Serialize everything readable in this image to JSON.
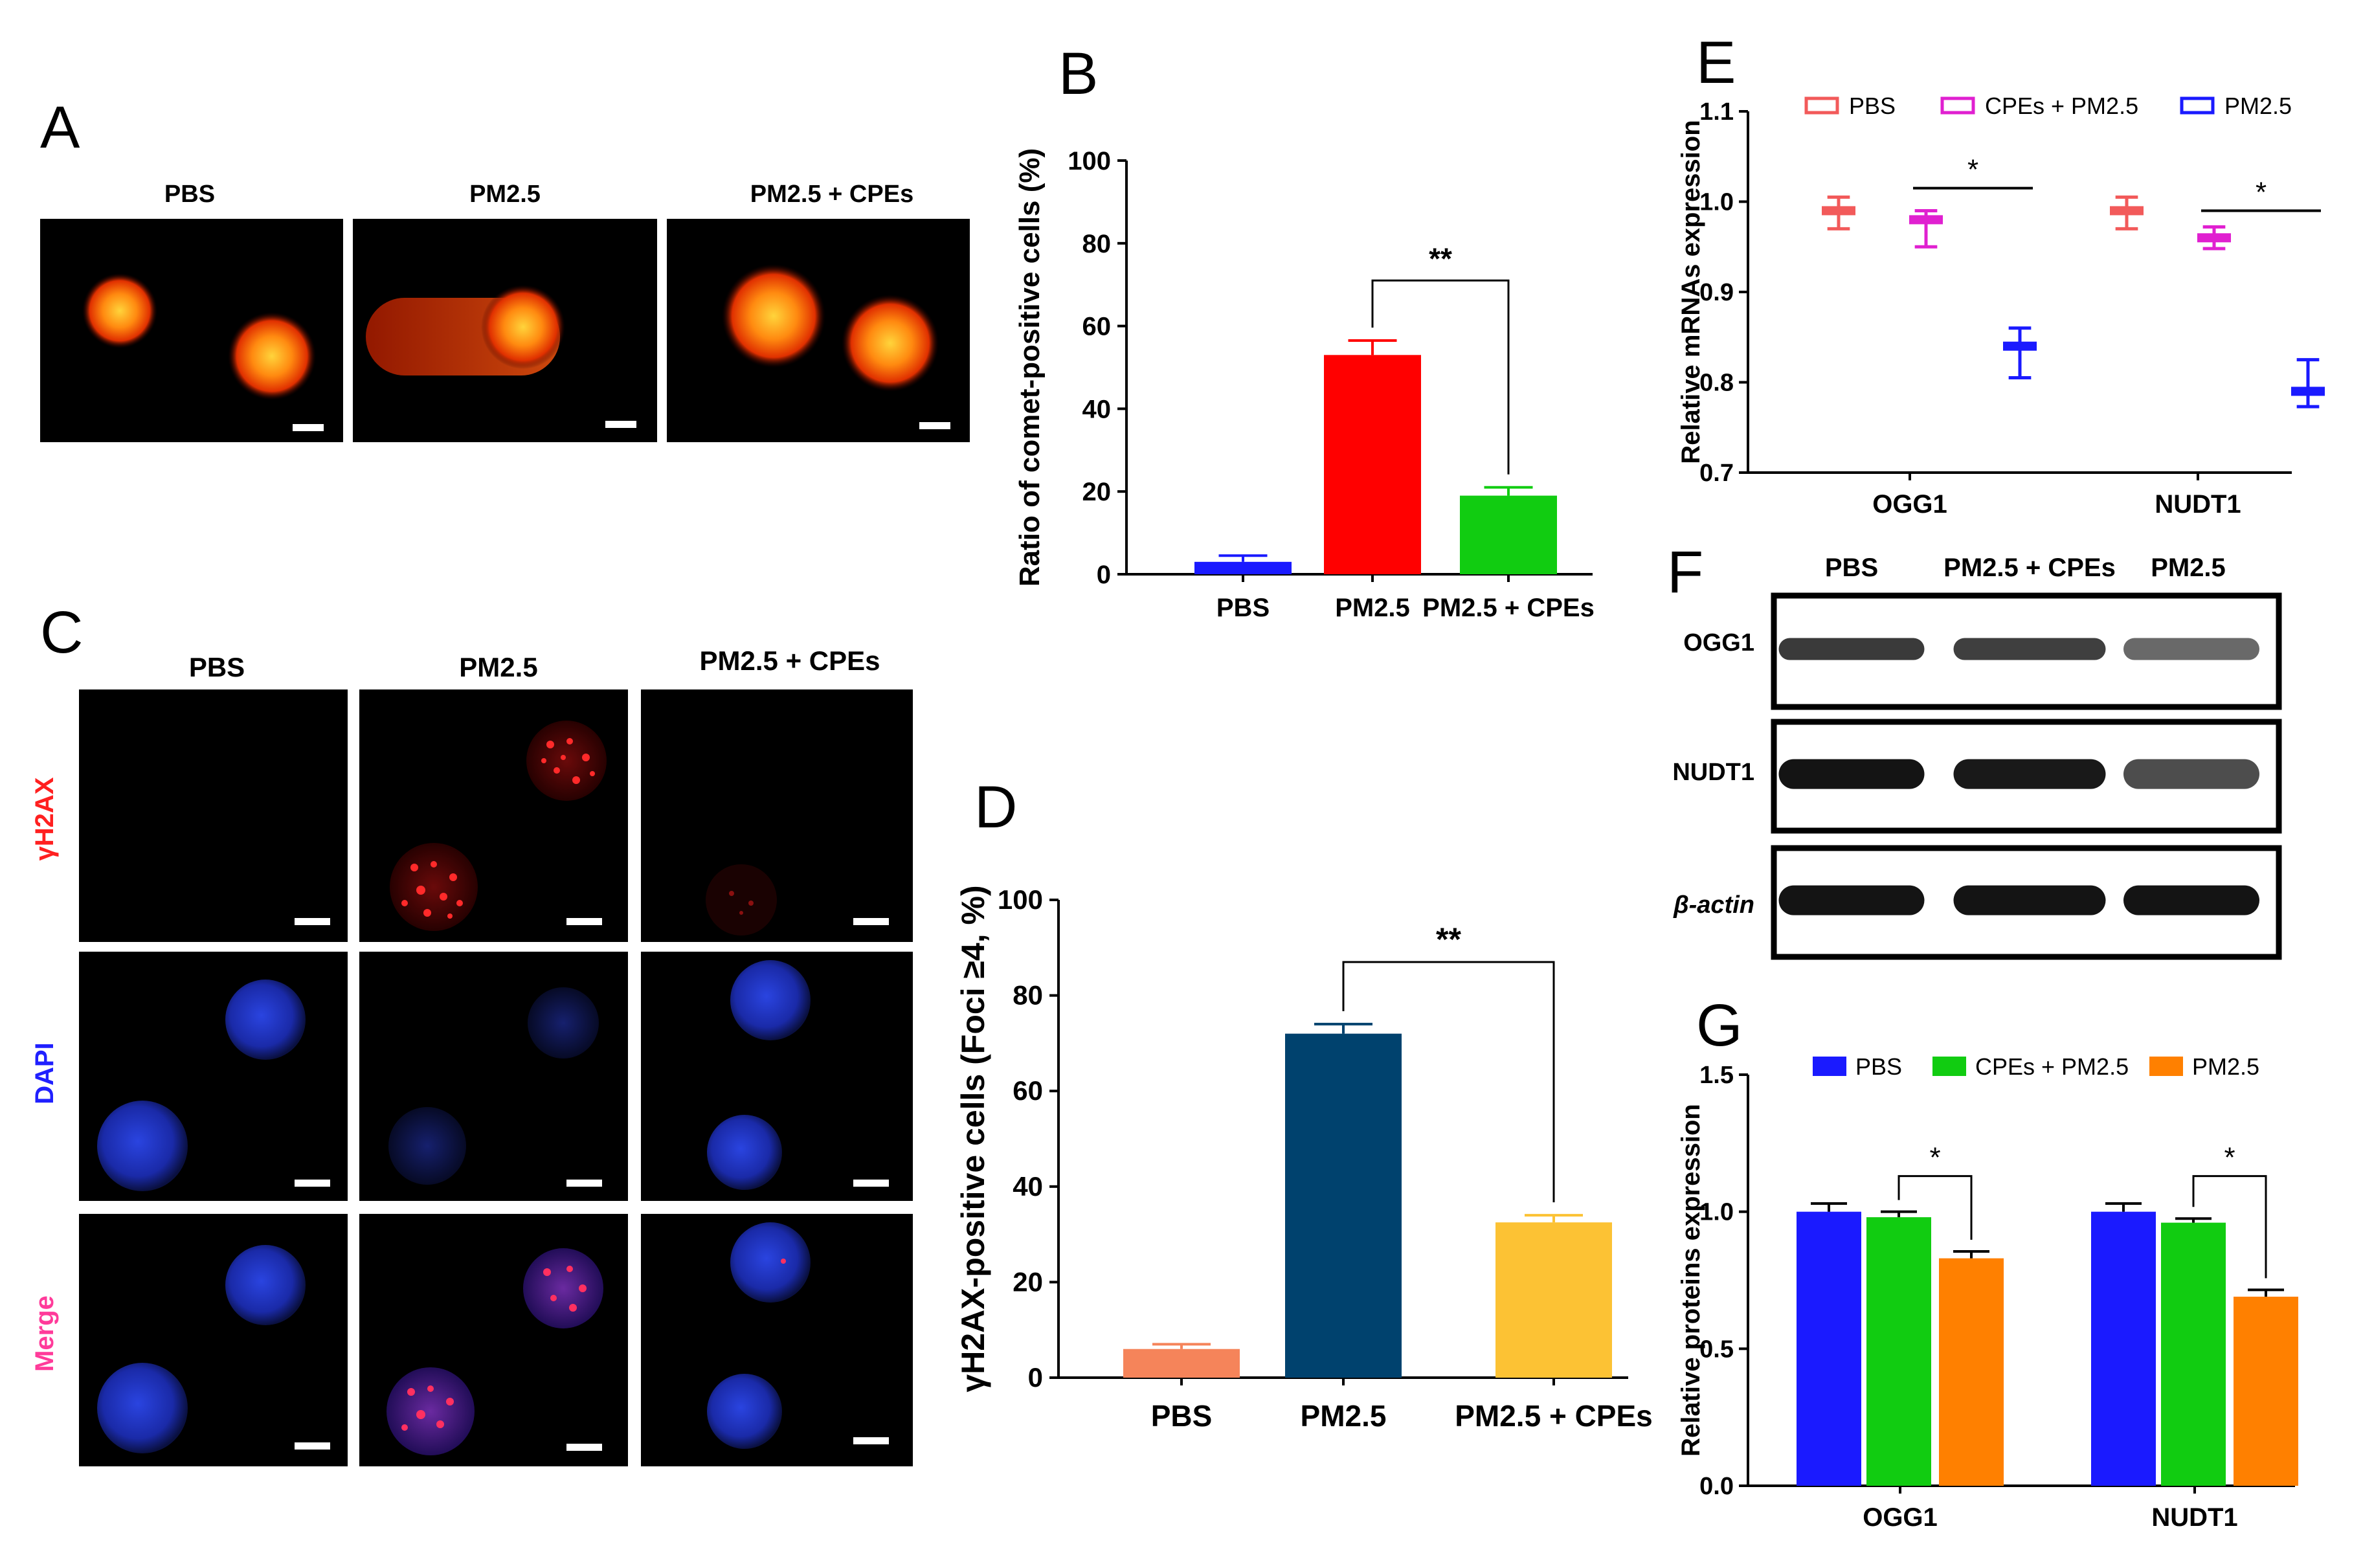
{
  "panels": {
    "A": {
      "letter": "A",
      "labels": [
        "PBS",
        "PM2.5",
        "PM2.5 + CPEs"
      ]
    },
    "B": {
      "letter": "B",
      "sig": "**"
    },
    "C": {
      "letter": "C",
      "columns": [
        "PBS",
        "PM2.5",
        "PM2.5 + CPEs"
      ],
      "rows": [
        "γH2AX",
        "DAPI",
        "Merge"
      ],
      "row_colors": [
        "#ff2020",
        "#2020ff",
        "#ff3b9a"
      ]
    },
    "D": {
      "letter": "D",
      "sig": "**"
    },
    "E": {
      "letter": "E",
      "sig": "*"
    },
    "F": {
      "letter": "F",
      "lanes": [
        "PBS",
        "PM2.5 + CPEs",
        "PM2.5"
      ],
      "rows": [
        "OGG1",
        "NUDT1",
        "β-actin"
      ],
      "band_intensity": [
        [
          0.75,
          0.72,
          0.5
        ],
        [
          0.95,
          0.92,
          0.65
        ],
        [
          0.95,
          0.95,
          0.95
        ]
      ]
    },
    "G": {
      "letter": "G",
      "sig": "*"
    }
  },
  "chart_data": [
    {
      "id": "B",
      "type": "bar",
      "categories": [
        "PBS",
        "PM2.5",
        "PM2.5 + CPEs"
      ],
      "values": [
        3,
        53,
        19
      ],
      "errors": [
        1.5,
        3.5,
        2
      ],
      "colors": [
        "#1a1aff",
        "#ff0000",
        "#11cc11"
      ],
      "title": "",
      "xlabel": "",
      "ylabel": "Ratio of comet-positive cells (%)",
      "ylim": [
        0,
        100
      ],
      "yticks": [
        0,
        20,
        40,
        60,
        80,
        100
      ],
      "significance": {
        "from": "PM2.5",
        "to": "PM2.5 + CPEs",
        "label": "**"
      }
    },
    {
      "id": "D",
      "type": "bar",
      "categories": [
        "PBS",
        "PM2.5",
        "PM2.5 + CPEs"
      ],
      "values": [
        6,
        72,
        32.5
      ],
      "errors": [
        1,
        2,
        1.5
      ],
      "colors": [
        "#f5845a",
        "#00426e",
        "#fcc234"
      ],
      "title": "",
      "xlabel": "",
      "ylabel": "γH2AX-positive cells (Foci ≥4, %)",
      "ylim": [
        0,
        100
      ],
      "yticks": [
        0,
        20,
        40,
        60,
        80,
        100
      ],
      "significance": {
        "from": "PM2.5",
        "to": "PM2.5 + CPEs",
        "label": "**"
      }
    },
    {
      "id": "E",
      "type": "scatter",
      "categories": [
        "OGG1",
        "NUDT1"
      ],
      "series": [
        {
          "name": "PBS",
          "color": "#f25a5a",
          "values": [
            0.99,
            0.99
          ],
          "mins": [
            0.97,
            0.97
          ],
          "maxs": [
            1.005,
            1.005
          ]
        },
        {
          "name": "CPEs + PM2.5",
          "color": "#e020d0",
          "values": [
            0.98,
            0.96
          ],
          "mins": [
            0.95,
            0.948
          ],
          "maxs": [
            0.99,
            0.972
          ]
        },
        {
          "name": "PM2.5",
          "color": "#1a1aff",
          "values": [
            0.84,
            0.79
          ],
          "mins": [
            0.805,
            0.773
          ],
          "maxs": [
            0.86,
            0.825
          ]
        }
      ],
      "title": "",
      "xlabel": "",
      "ylabel": "Relative mRNAs expression",
      "ylim": [
        0.7,
        1.1
      ],
      "yticks": [
        0.7,
        0.8,
        0.9,
        1.0,
        1.1
      ],
      "legend": "top",
      "significance": [
        {
          "category": "OGG1",
          "label": "*"
        },
        {
          "category": "NUDT1",
          "label": "*"
        }
      ]
    },
    {
      "id": "G",
      "type": "bar",
      "categories": [
        "OGG1",
        "NUDT1"
      ],
      "series": [
        {
          "name": "PBS",
          "color": "#1a1aff",
          "values": [
            1.0,
            1.0
          ],
          "errors": [
            0.03,
            0.03
          ]
        },
        {
          "name": "CPEs + PM2.5",
          "color": "#11cc11",
          "values": [
            0.98,
            0.96
          ],
          "errors": [
            0.02,
            0.015
          ]
        },
        {
          "name": "PM2.5",
          "color": "#ff8000",
          "values": [
            0.83,
            0.69
          ],
          "errors": [
            0.025,
            0.025
          ]
        }
      ],
      "title": "",
      "xlabel": "",
      "ylabel": "Relative proteins expression",
      "ylim": [
        0,
        1.5
      ],
      "yticks": [
        0.0,
        0.5,
        1.0,
        1.5
      ],
      "legend": "top",
      "significance": [
        {
          "category": "OGG1",
          "label": "*"
        },
        {
          "category": "NUDT1",
          "label": "*"
        }
      ]
    }
  ]
}
